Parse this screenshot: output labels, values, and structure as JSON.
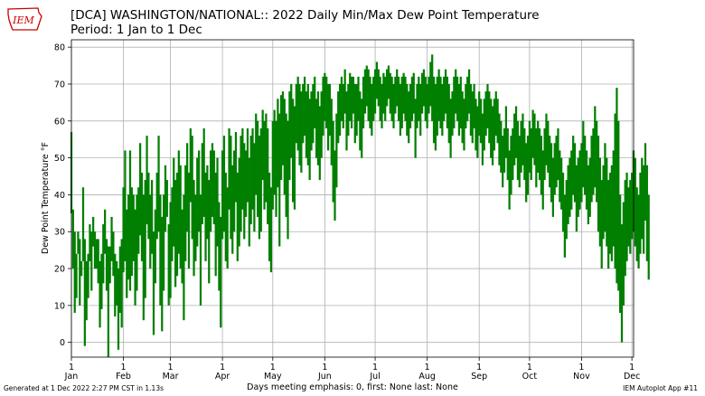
{
  "logo": {
    "text": "IEM",
    "icon": "iowa-state-outline-logo",
    "color": "#cc0000"
  },
  "title_line1": "[DCA] WASHINGTON/NATIONAL:: 2022 Daily Min/Max Dew Point Temperature",
  "title_line2": "Period: 1 Jan to 1 Dec",
  "footer_left": "Generated at 1 Dec 2022 2:27 PM CST in 1.13s",
  "footer_right": "IEM Autoplot App #11",
  "chart_data": {
    "type": "bar",
    "subtype": "floating-range",
    "title": "[DCA] WASHINGTON/NATIONAL:: 2022 Daily Min/Max Dew Point Temperature",
    "subtitle": "Period: 1 Jan to 1 Dec",
    "ylabel": "Dew Point Temperature °F",
    "xlabel": "Days meeting emphasis: 0, first: None last: None",
    "ylim": [
      -4,
      82
    ],
    "yticks": [
      0,
      10,
      20,
      30,
      40,
      50,
      60,
      70,
      80
    ],
    "xlim": [
      0,
      335
    ],
    "xticks": [
      {
        "day": 0,
        "top": "1",
        "bottom": "Jan"
      },
      {
        "day": 31,
        "top": "1",
        "bottom": "Feb"
      },
      {
        "day": 59,
        "top": "1",
        "bottom": "Mar"
      },
      {
        "day": 90,
        "top": "1",
        "bottom": "Apr"
      },
      {
        "day": 120,
        "top": "1",
        "bottom": "May"
      },
      {
        "day": 151,
        "top": "1",
        "bottom": "Jun"
      },
      {
        "day": 181,
        "top": "1",
        "bottom": "Jul"
      },
      {
        "day": 212,
        "top": "1",
        "bottom": "Aug"
      },
      {
        "day": 243,
        "top": "1",
        "bottom": "Sep"
      },
      {
        "day": 273,
        "top": "1",
        "bottom": "Oct"
      },
      {
        "day": 304,
        "top": "1",
        "bottom": "Nov"
      },
      {
        "day": 334,
        "top": "1",
        "bottom": "Dec"
      }
    ],
    "grid": true,
    "bar_color": "#007f00",
    "month_ranges": [
      {
        "month": "Jan",
        "min_low": -4,
        "max_high": 60
      },
      {
        "month": "Feb",
        "min_low": -2,
        "max_high": 56
      },
      {
        "month": "Mar",
        "min_low": 1,
        "max_high": 58
      },
      {
        "month": "Apr",
        "min_low": 2,
        "max_high": 58
      },
      {
        "month": "May",
        "min_low": 19,
        "max_high": 68
      },
      {
        "month": "Jun",
        "min_low": 33,
        "max_high": 73
      },
      {
        "month": "Jul",
        "min_low": 50,
        "max_high": 76
      },
      {
        "month": "Aug",
        "min_low": 50,
        "max_high": 78
      },
      {
        "month": "Sep",
        "min_low": 35,
        "max_high": 70
      },
      {
        "month": "Oct",
        "min_low": 23,
        "max_high": 63
      },
      {
        "month": "Nov",
        "min_low": 0,
        "max_high": 69
      },
      {
        "month": "Dec",
        "min_low": 17,
        "max_high": 54
      }
    ],
    "series": [
      {
        "name": "min",
        "values": [
          35,
          20,
          8,
          12,
          24,
          10,
          18,
          22,
          -1,
          6,
          12,
          22,
          14,
          26,
          20,
          20,
          16,
          4,
          9,
          16,
          24,
          14,
          -4,
          16,
          22,
          18,
          7,
          10,
          -2,
          8,
          4,
          19,
          22,
          12,
          17,
          14,
          18,
          22,
          10,
          14,
          24,
          29,
          22,
          6,
          12,
          32,
          28,
          20,
          24,
          2,
          16,
          28,
          30,
          10,
          3,
          14,
          30,
          34,
          10,
          12,
          22,
          26,
          15,
          18,
          24,
          20,
          16,
          6,
          22,
          30,
          20,
          38,
          28,
          18,
          22,
          26,
          30,
          10,
          32,
          34,
          22,
          28,
          16,
          30,
          34,
          32,
          18,
          26,
          14,
          4,
          28,
          30,
          22,
          20,
          36,
          28,
          24,
          30,
          38,
          22,
          26,
          30,
          36,
          28,
          34,
          38,
          26,
          32,
          36,
          30,
          40,
          34,
          28,
          30,
          44,
          36,
          38,
          32,
          22,
          19,
          36,
          40,
          34,
          42,
          26,
          44,
          48,
          40,
          34,
          28,
          44,
          50,
          38,
          36,
          54,
          52,
          48,
          46,
          54,
          56,
          50,
          48,
          44,
          52,
          54,
          58,
          50,
          48,
          44,
          50,
          56,
          60,
          58,
          52,
          56,
          48,
          38,
          33,
          42,
          54,
          56,
          60,
          58,
          62,
          52,
          56,
          60,
          58,
          62,
          54,
          56,
          60,
          52,
          50,
          58,
          62,
          64,
          60,
          58,
          56,
          60,
          62,
          66,
          64,
          60,
          58,
          62,
          60,
          64,
          66,
          62,
          60,
          58,
          62,
          64,
          60,
          56,
          58,
          62,
          60,
          56,
          54,
          58,
          60,
          62,
          50,
          58,
          60,
          56,
          62,
          64,
          60,
          58,
          62,
          64,
          60,
          54,
          52,
          56,
          60,
          58,
          56,
          60,
          62,
          58,
          54,
          50,
          56,
          58,
          62,
          60,
          56,
          58,
          54,
          52,
          58,
          60,
          62,
          56,
          54,
          58,
          52,
          50,
          56,
          54,
          48,
          52,
          56,
          58,
          54,
          50,
          48,
          52,
          56,
          54,
          48,
          46,
          42,
          46,
          50,
          44,
          36,
          40,
          44,
          48,
          50,
          44,
          42,
          46,
          48,
          44,
          38,
          40,
          46,
          44,
          50,
          48,
          42,
          46,
          44,
          40,
          36,
          44,
          48,
          46,
          42,
          38,
          34,
          40,
          42,
          44,
          38,
          36,
          30,
          23,
          28,
          32,
          34,
          36,
          40,
          38,
          30,
          34,
          36,
          38,
          42,
          40,
          36,
          32,
          34,
          38,
          40,
          42,
          38,
          30,
          26,
          20,
          28,
          30,
          26,
          20,
          24,
          22,
          26,
          20,
          16,
          14,
          8,
          0,
          10,
          18,
          22,
          26,
          24,
          28,
          30,
          26,
          22,
          20,
          24,
          28,
          24,
          33,
          22,
          17
        ]
      },
      {
        "name": "max",
        "values": [
          57,
          36,
          30,
          24,
          30,
          28,
          22,
          42,
          28,
          22,
          24,
          32,
          30,
          34,
          30,
          28,
          28,
          22,
          24,
          32,
          36,
          28,
          26,
          26,
          34,
          30,
          24,
          22,
          20,
          26,
          28,
          42,
          52,
          36,
          40,
          52,
          42,
          40,
          36,
          40,
          42,
          54,
          46,
          40,
          44,
          56,
          46,
          40,
          44,
          30,
          36,
          46,
          56,
          40,
          34,
          40,
          48,
          44,
          32,
          38,
          42,
          50,
          44,
          46,
          52,
          48,
          36,
          40,
          48,
          54,
          46,
          58,
          56,
          44,
          40,
          50,
          52,
          40,
          54,
          58,
          46,
          48,
          44,
          52,
          54,
          52,
          46,
          50,
          38,
          34,
          52,
          56,
          46,
          42,
          58,
          56,
          48,
          52,
          57,
          46,
          50,
          56,
          58,
          54,
          52,
          58,
          50,
          56,
          58,
          54,
          62,
          60,
          56,
          58,
          63,
          60,
          62,
          58,
          46,
          42,
          60,
          63,
          60,
          66,
          62,
          67,
          68,
          66,
          62,
          60,
          68,
          70,
          66,
          64,
          70,
          72,
          70,
          68,
          70,
          72,
          68,
          70,
          66,
          68,
          70,
          72,
          66,
          68,
          64,
          68,
          72,
          73,
          72,
          70,
          70,
          66,
          60,
          52,
          62,
          68,
          70,
          72,
          70,
          74,
          68,
          70,
          73,
          72,
          72,
          70,
          70,
          72,
          68,
          66,
          72,
          74,
          75,
          74,
          72,
          70,
          72,
          74,
          76,
          74,
          72,
          70,
          73,
          72,
          74,
          75,
          73,
          72,
          70,
          72,
          74,
          72,
          70,
          72,
          73,
          72,
          70,
          68,
          70,
          72,
          73,
          66,
          70,
          72,
          70,
          73,
          74,
          72,
          70,
          72,
          76,
          78,
          72,
          70,
          72,
          74,
          72,
          70,
          72,
          74,
          72,
          70,
          66,
          68,
          72,
          74,
          72,
          70,
          72,
          68,
          66,
          70,
          72,
          74,
          70,
          68,
          70,
          66,
          64,
          68,
          66,
          62,
          66,
          68,
          70,
          68,
          66,
          64,
          66,
          68,
          66,
          62,
          60,
          56,
          58,
          64,
          58,
          52,
          56,
          58,
          62,
          64,
          60,
          56,
          60,
          62,
          58,
          54,
          56,
          60,
          58,
          63,
          62,
          58,
          60,
          58,
          56,
          52,
          58,
          62,
          60,
          56,
          54,
          50,
          54,
          56,
          58,
          52,
          50,
          46,
          40,
          44,
          48,
          50,
          52,
          56,
          54,
          48,
          50,
          52,
          54,
          60,
          56,
          52,
          48,
          50,
          56,
          58,
          64,
          60,
          56,
          50,
          44,
          48,
          54,
          50,
          44,
          46,
          48,
          52,
          62,
          69,
          60,
          40,
          32,
          38,
          44,
          46,
          42,
          44,
          46,
          52,
          50,
          42,
          40,
          46,
          50,
          48,
          54,
          48,
          40
        ]
      }
    ]
  }
}
